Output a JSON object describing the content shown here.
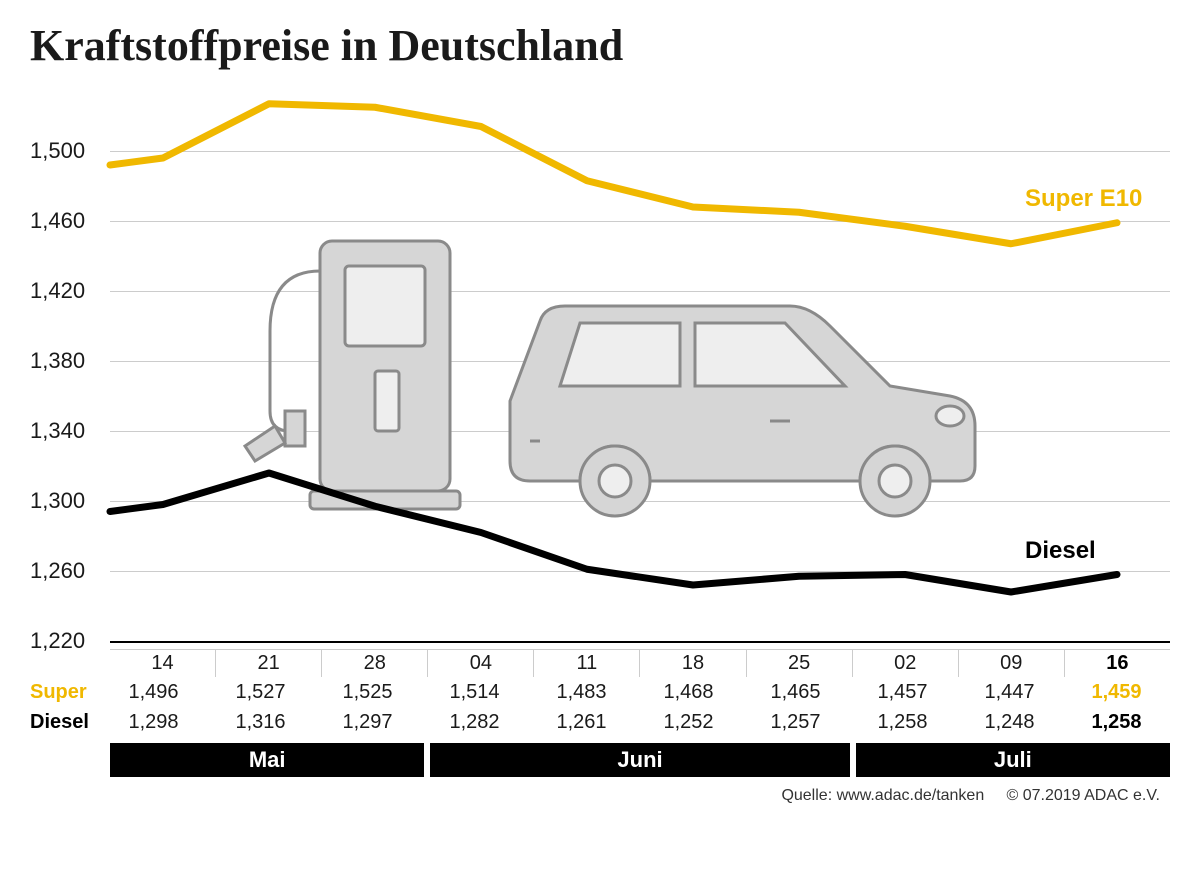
{
  "title": "Kraftstoffpreise in Deutschland",
  "chart": {
    "type": "line",
    "y_axis": {
      "min": 1220,
      "max": 1540,
      "ticks": [
        1220,
        1260,
        1300,
        1340,
        1380,
        1420,
        1460,
        1500
      ],
      "tick_labels": [
        "1,220",
        "1,260",
        "1,300",
        "1,340",
        "1,380",
        "1,420",
        "1,460",
        "1,500"
      ],
      "label_fontsize": 22,
      "grid_color": "#cccccc",
      "axis_color": "#000000"
    },
    "x_dates": [
      "14",
      "21",
      "28",
      "04",
      "11",
      "18",
      "25",
      "02",
      "09",
      "16"
    ],
    "series": {
      "super": {
        "label": "Super E10",
        "color": "#f0b800",
        "line_width": 7,
        "values": [
          1496,
          1527,
          1525,
          1514,
          1483,
          1468,
          1465,
          1457,
          1447,
          1459
        ],
        "display": [
          "1,496",
          "1,527",
          "1,525",
          "1,514",
          "1,483",
          "1,468",
          "1,465",
          "1,457",
          "1,447",
          "1,459"
        ],
        "start_value": 1492
      },
      "diesel": {
        "label": "Diesel",
        "color": "#000000",
        "line_width": 7,
        "values": [
          1298,
          1316,
          1297,
          1282,
          1261,
          1252,
          1257,
          1258,
          1248,
          1258
        ],
        "display": [
          "1,298",
          "1,316",
          "1,297",
          "1,282",
          "1,261",
          "1,252",
          "1,257",
          "1,258",
          "1,248",
          "1,258"
        ],
        "start_value": 1294
      }
    },
    "months": [
      {
        "label": "Mai",
        "span": 3
      },
      {
        "label": "Juni",
        "span": 4
      },
      {
        "label": "Juli",
        "span": 3
      }
    ],
    "background_color": "#ffffff",
    "illustration_color": "#d0d0d0",
    "illustration_stroke": "#888888"
  },
  "table": {
    "row_labels": {
      "super": "Super",
      "diesel": "Diesel"
    }
  },
  "source": {
    "text": "Quelle: www.adac.de/tanken",
    "copyright": "© 07.2019  ADAC e.V."
  }
}
